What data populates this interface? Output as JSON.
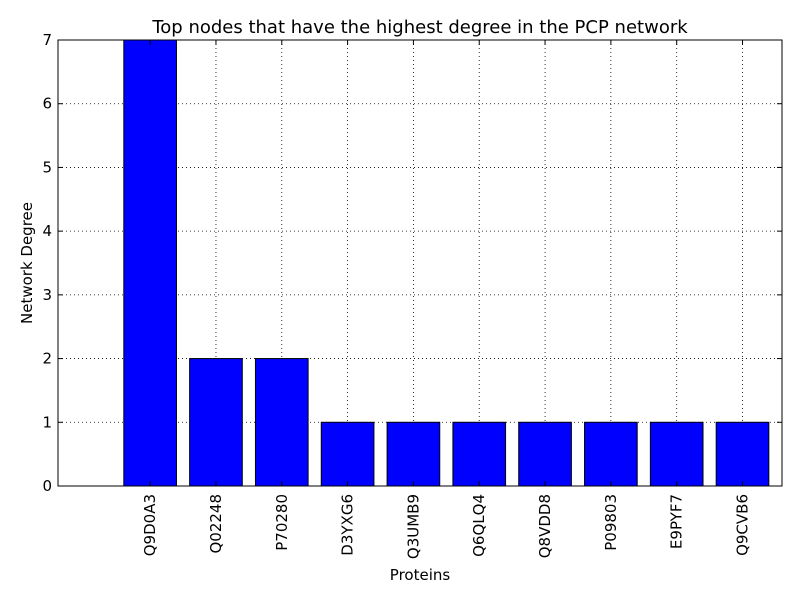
{
  "chart_data": {
    "type": "bar",
    "title": "Top nodes that have the highest degree in the PCP network",
    "xlabel": "Proteins",
    "ylabel": "Network Degree",
    "categories": [
      "Q9D0A3",
      "Q02248",
      "P70280",
      "D3YXG6",
      "Q3UMB9",
      "Q6QLQ4",
      "Q8VDD8",
      "P09803",
      "E9PYF7",
      "Q9CVB6"
    ],
    "values": [
      7,
      2,
      2,
      1,
      1,
      1,
      1,
      1,
      1,
      1
    ],
    "yticks": [
      "0",
      "1",
      "2",
      "3",
      "4",
      "5",
      "6",
      "7"
    ],
    "ylim": [
      0,
      7
    ],
    "grid": true,
    "legend": "none",
    "bar_color": "#0000ff",
    "edge_color": "#000000"
  }
}
